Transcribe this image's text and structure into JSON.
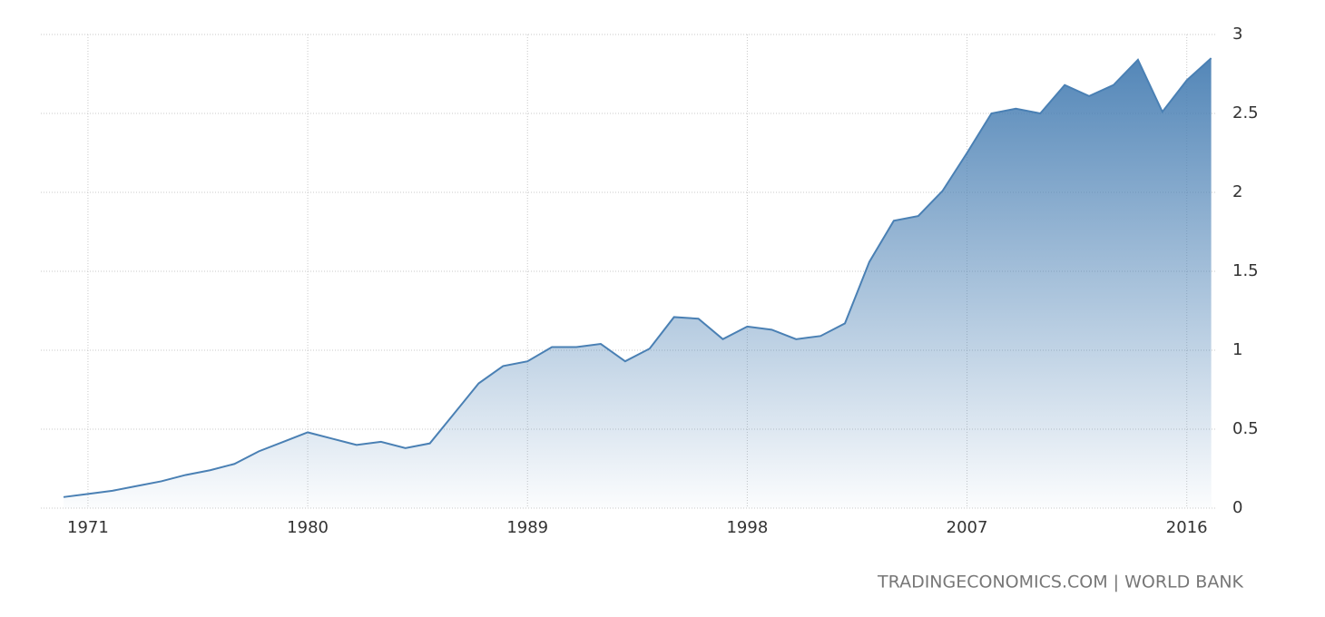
{
  "chart_data": {
    "type": "area",
    "x": [
      1970,
      1971,
      1972,
      1973,
      1974,
      1975,
      1976,
      1977,
      1978,
      1979,
      1980,
      1981,
      1982,
      1983,
      1984,
      1985,
      1986,
      1987,
      1988,
      1989,
      1990,
      1991,
      1992,
      1993,
      1994,
      1995,
      1996,
      1997,
      1998,
      1999,
      2000,
      2001,
      2002,
      2003,
      2004,
      2005,
      2006,
      2007,
      2008,
      2009,
      2010,
      2011,
      2012,
      2013,
      2014,
      2015,
      2016,
      2017
    ],
    "values": [
      0.07,
      0.09,
      0.11,
      0.14,
      0.17,
      0.21,
      0.24,
      0.28,
      0.36,
      0.42,
      0.48,
      0.44,
      0.4,
      0.42,
      0.38,
      0.41,
      0.6,
      0.79,
      0.9,
      0.93,
      1.02,
      1.02,
      1.04,
      0.93,
      1.01,
      1.21,
      1.2,
      1.07,
      1.15,
      1.13,
      1.07,
      1.09,
      1.17,
      1.56,
      1.82,
      1.85,
      2.01,
      2.25,
      2.5,
      2.53,
      2.5,
      2.68,
      2.61,
      2.68,
      2.84,
      2.51,
      2.71,
      2.85
    ],
    "color": "#4a80b4",
    "xlim": [
      1969.07,
      2017.2
    ],
    "ylim": [
      0,
      3
    ],
    "xticks": [
      1971,
      1980,
      1989,
      1998,
      2007,
      2016
    ],
    "yticks": [
      0,
      0.5,
      1,
      1.5,
      2,
      2.5,
      3
    ],
    "grid": true,
    "source": "TRADINGECONOMICS.COM | WORLD BANK"
  }
}
